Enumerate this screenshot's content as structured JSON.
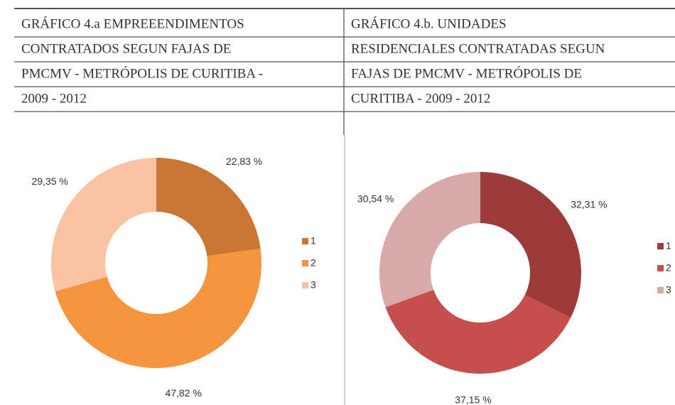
{
  "chart_data": [
    {
      "type": "pie",
      "title": [
        "GRÁFICO 4.a EMPREEENDIMENTOS",
        "CONTRATADOS SEGUN FAJAS DE",
        "PMCMV - METRÓPOLIS DE CURITIBA -",
        "2009 - 2012"
      ],
      "categories": [
        "1",
        "2",
        "3"
      ],
      "values": [
        22.83,
        47.82,
        29.35
      ],
      "value_labels": [
        "22,83 %",
        "47,82 %",
        "29,35 %"
      ],
      "colors": [
        "#c97533",
        "#f5963f",
        "#f8c4a4"
      ]
    },
    {
      "type": "pie",
      "title": [
        "GRÁFICO 4.b. UNIDADES",
        "RESIDENCIALES CONTRATADAS SEGUN",
        "FAJAS DE PMCMV - METRÓPOLIS DE",
        "CURITIBA - 2009 - 2012"
      ],
      "categories": [
        "1",
        "2",
        "3"
      ],
      "values": [
        32.31,
        37.15,
        30.54
      ],
      "value_labels": [
        "32,31 %",
        "37,15 %",
        "30,54 %"
      ],
      "colors": [
        "#9c3b3b",
        "#c54f4d",
        "#d9a8a8"
      ]
    }
  ]
}
